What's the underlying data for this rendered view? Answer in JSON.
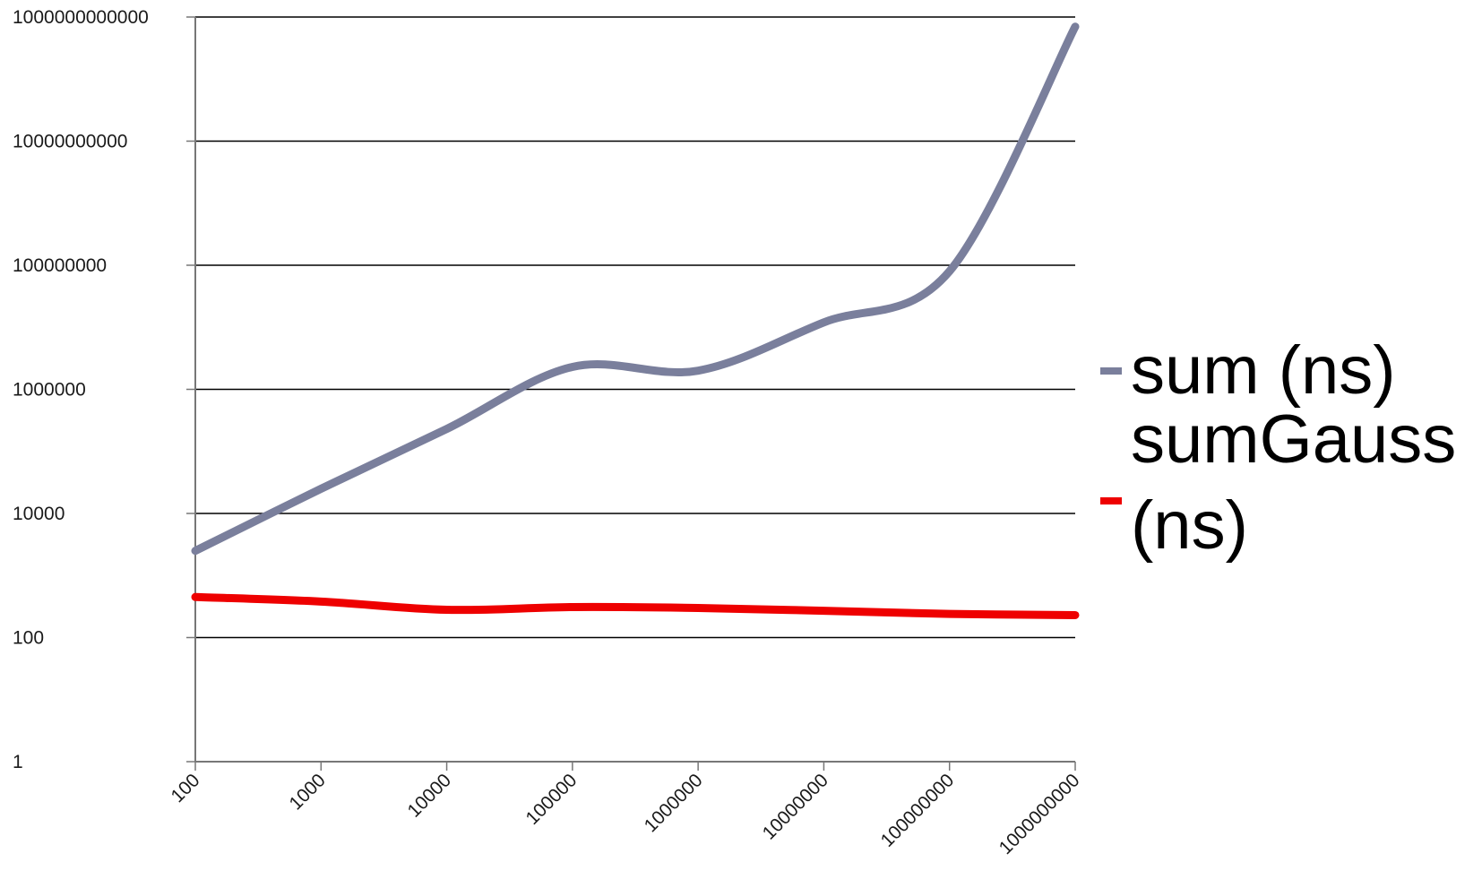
{
  "chart_data": {
    "type": "line",
    "title": "",
    "xlabel": "",
    "ylabel": "",
    "x_scale": "log",
    "y_scale": "log",
    "x": [
      100,
      1000,
      10000,
      100000,
      1000000,
      10000000,
      100000000,
      1000000000
    ],
    "x_tick_labels": [
      "100",
      "1000",
      "10000",
      "100000",
      "1000000",
      "10000000",
      "100000000",
      "1000000000"
    ],
    "y_tick_values": [
      1,
      100,
      10000,
      1000000,
      100000000,
      10000000000,
      1000000000000
    ],
    "y_tick_labels": [
      "1",
      "100",
      "10000",
      "1000000",
      "100000000",
      "10000000000",
      "1000000000000"
    ],
    "ylim": [
      1,
      1000000000000
    ],
    "grid": "horizontal",
    "legend_position": "right",
    "series": [
      {
        "name": "sum (ns)",
        "legend_lines": [
          "sum (ns)"
        ],
        "color": "#7a7f9c",
        "values": [
          2500,
          25000,
          230000,
          2300000,
          2000000,
          12000000,
          80000000,
          700000000000
        ]
      },
      {
        "name": "sumGauss (ns)",
        "legend_lines": [
          "sumGauss",
          "(ns)"
        ],
        "color": "#ee0000",
        "values": [
          450,
          380,
          280,
          310,
          300,
          270,
          240,
          230
        ]
      }
    ]
  }
}
